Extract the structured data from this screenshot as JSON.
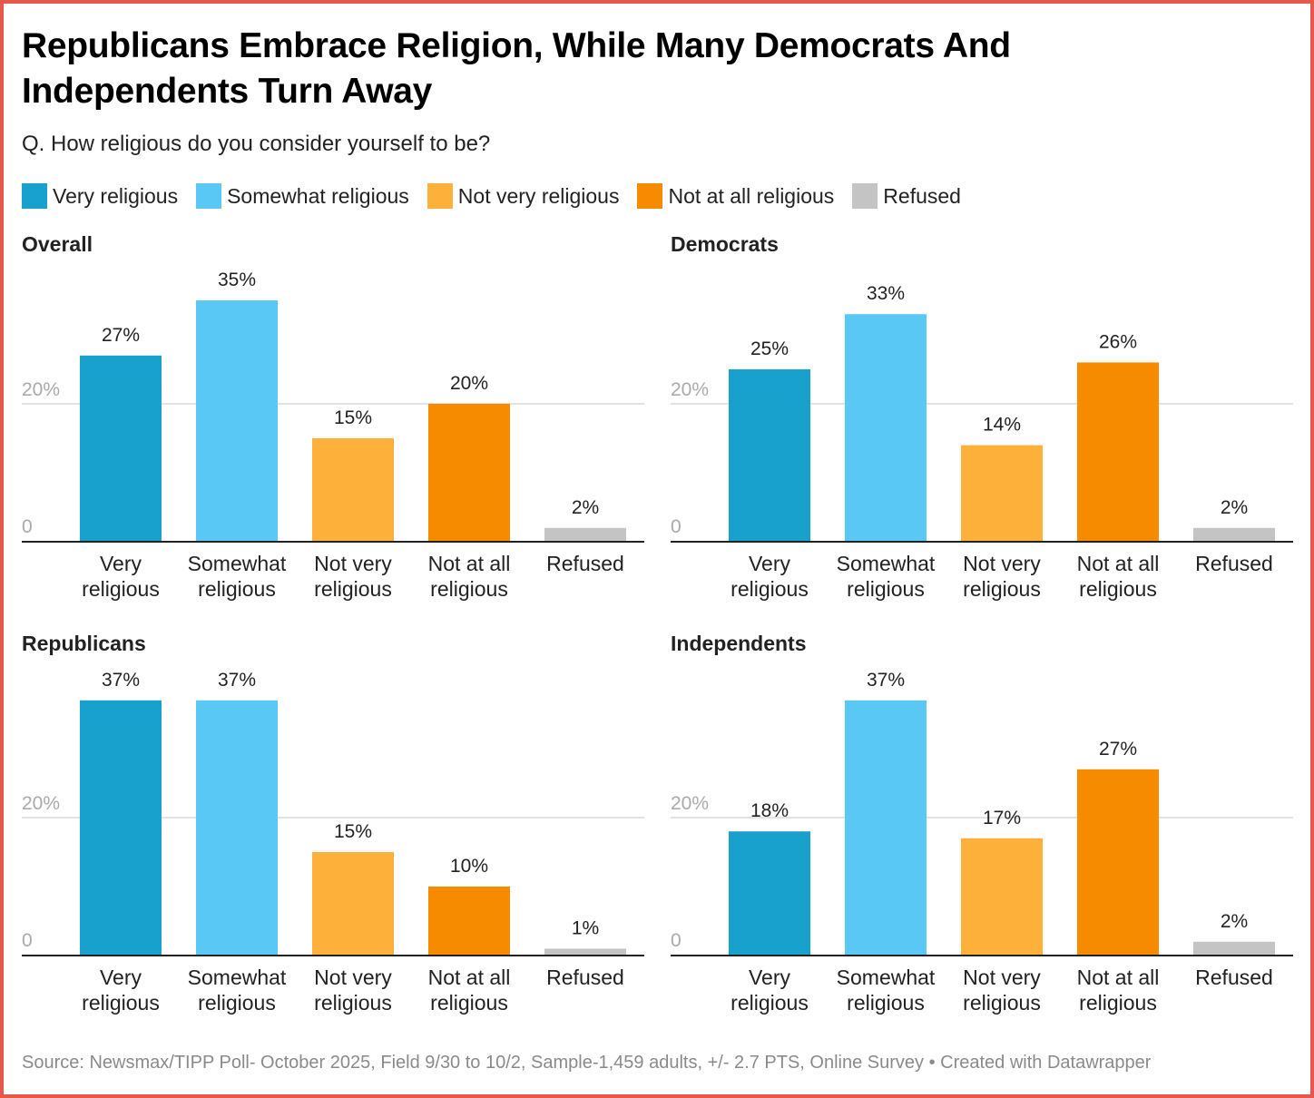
{
  "header": {
    "title": "Republicans Embrace Religion, While Many Democrats And Independents Turn Away",
    "subtitle": "Q. How religious do you consider yourself to be?"
  },
  "legend": [
    {
      "label": "Very religious",
      "color": "#18a1cd"
    },
    {
      "label": "Somewhat religious",
      "color": "#5ac8f5"
    },
    {
      "label": "Not very religious",
      "color": "#fdb03a"
    },
    {
      "label": "Not at all religious",
      "color": "#f78b00"
    },
    {
      "label": "Refused",
      "color": "#c4c4c4"
    }
  ],
  "chart_data": [
    {
      "type": "bar",
      "title": "Overall",
      "categories": [
        "Very religious",
        "Somewhat religious",
        "Not very religious",
        "Not at all religious",
        "Refused"
      ],
      "values": [
        27,
        35,
        15,
        20,
        2
      ],
      "data_labels": [
        "27%",
        "35%",
        "15%",
        "20%",
        "2%"
      ],
      "yticks": [
        "0",
        "20%"
      ],
      "ylim": [
        0,
        40
      ]
    },
    {
      "type": "bar",
      "title": "Democrats",
      "categories": [
        "Very religious",
        "Somewhat religious",
        "Not very religious",
        "Not at all religious",
        "Refused"
      ],
      "values": [
        25,
        33,
        14,
        26,
        2
      ],
      "data_labels": [
        "25%",
        "33%",
        "14%",
        "26%",
        "2%"
      ],
      "yticks": [
        "0",
        "20%"
      ],
      "ylim": [
        0,
        40
      ]
    },
    {
      "type": "bar",
      "title": "Republicans",
      "categories": [
        "Very religious",
        "Somewhat religious",
        "Not very religious",
        "Not at all religious",
        "Refused"
      ],
      "values": [
        37,
        37,
        15,
        10,
        1
      ],
      "data_labels": [
        "37%",
        "37%",
        "15%",
        "10%",
        "1%"
      ],
      "yticks": [
        "0",
        "20%"
      ],
      "ylim": [
        0,
        40
      ]
    },
    {
      "type": "bar",
      "title": "Independents",
      "categories": [
        "Very religious",
        "Somewhat religious",
        "Not very religious",
        "Not at all religious",
        "Refused"
      ],
      "values": [
        18,
        37,
        17,
        27,
        2
      ],
      "data_labels": [
        "18%",
        "37%",
        "17%",
        "27%",
        "2%"
      ],
      "yticks": [
        "0",
        "20%"
      ],
      "ylim": [
        0,
        40
      ]
    }
  ],
  "category_lines": [
    [
      "Very",
      "religious"
    ],
    [
      "Somewhat",
      "religious"
    ],
    [
      "Not very",
      "religious"
    ],
    [
      "Not at all",
      "religious"
    ],
    [
      "Refused"
    ]
  ],
  "footer": {
    "source": "Source: Newsmax/TIPP Poll- October 2025, Field 9/30 to 10/2, Sample-1,459 adults, +/- 2.7 PTS, Online Survey • Created with Datawrapper"
  }
}
